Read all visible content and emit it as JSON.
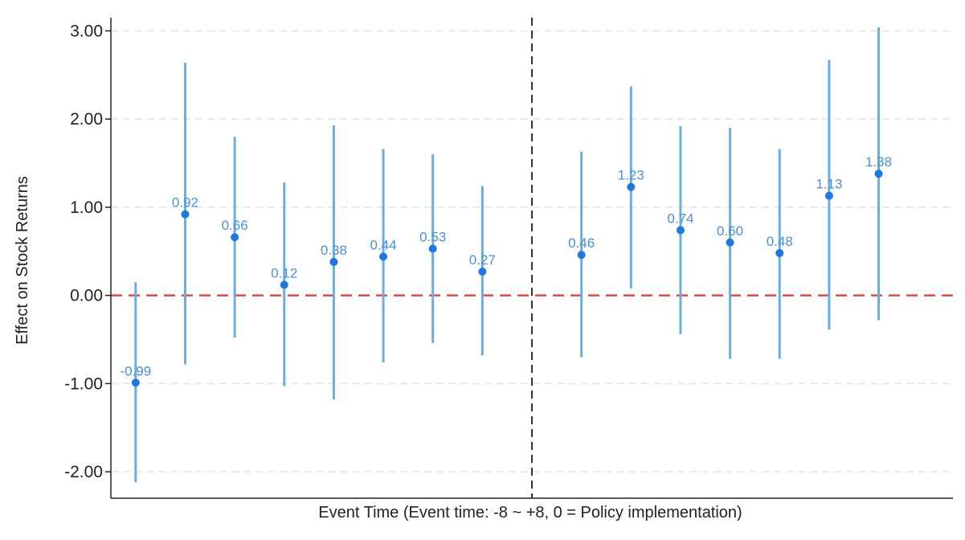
{
  "chart_data": {
    "type": "scatter",
    "subtype": "event-study coefficient plot with confidence intervals",
    "xlabel": "Event Time (Event time: -8 ~ +8, 0 = Policy implementation)",
    "ylabel": "Effect on Stock Returns",
    "ylim": [
      -2.3,
      3.15
    ],
    "yticks": [
      3.0,
      2.0,
      1.0,
      0.0,
      -1.0,
      -2.0
    ],
    "ytick_labels": [
      "3.00",
      "2.00",
      "1.00",
      "0.00",
      "-1.00",
      "-2.00"
    ],
    "xlim": [
      -8.5,
      8.5
    ],
    "grid": "horizontal dashed",
    "reference_lines": {
      "zero_line": 0.0,
      "event_line": 0
    },
    "series": [
      {
        "x": [
          -8,
          -7,
          -6,
          -5,
          -4,
          -3,
          -2,
          -1,
          1,
          2,
          3,
          4,
          5,
          6,
          7
        ],
        "values": [
          -0.99,
          0.92,
          0.66,
          0.12,
          0.38,
          0.44,
          0.53,
          0.27,
          0.46,
          1.23,
          0.74,
          0.6,
          0.48,
          1.13,
          1.38
        ],
        "labels": [
          "-0.99",
          "0.92",
          "0.66",
          "0.12",
          "0.38",
          "0.44",
          "0.53",
          "0.27",
          "0.46",
          "1.23",
          "0.74",
          "0.60",
          "0.48",
          "1.13",
          "1.38"
        ],
        "ci_low": [
          -2.12,
          -0.78,
          -0.48,
          -1.03,
          -1.18,
          -0.76,
          -0.54,
          -0.68,
          -0.7,
          0.08,
          -0.44,
          -0.72,
          -0.72,
          -0.39,
          -0.28
        ],
        "ci_high": [
          0.15,
          2.64,
          1.8,
          1.28,
          1.93,
          1.66,
          1.6,
          1.24,
          1.63,
          2.37,
          1.92,
          1.9,
          1.66,
          2.67,
          3.04
        ]
      }
    ],
    "colors": {
      "points": "#1f78e0",
      "ci": "#6aaee0",
      "labels": "#4a90d9",
      "zero_line": "#d94a4a",
      "event_line": "#333333",
      "grid": "#e3e3e3",
      "axis": "#222222"
    }
  }
}
